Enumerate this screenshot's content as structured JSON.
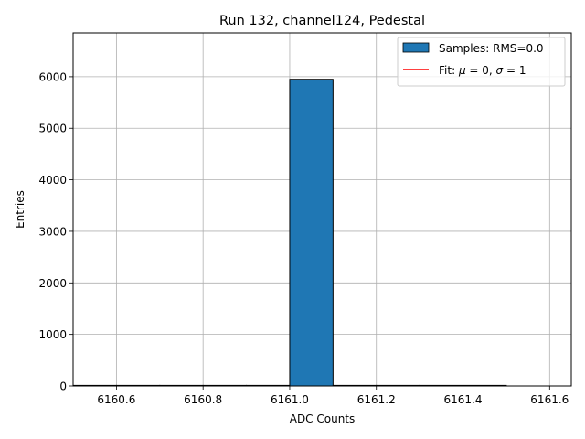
{
  "chart_data": {
    "type": "bar",
    "title": "Run 132, channel124, Pedestal",
    "xlabel": "ADC Counts",
    "ylabel": "Entries",
    "xlim": [
      6160.5,
      6161.65
    ],
    "ylim": [
      0,
      6850
    ],
    "xticks": [
      6160.6,
      6160.8,
      6161.0,
      6161.2,
      6161.4,
      6161.6
    ],
    "xtick_labels": [
      "6160.6",
      "6160.8",
      "6161.0",
      "6161.2",
      "6161.4",
      "6161.6"
    ],
    "yticks": [
      0,
      1000,
      2000,
      3000,
      4000,
      5000,
      6000
    ],
    "ytick_labels": [
      "0",
      "1000",
      "2000",
      "3000",
      "4000",
      "5000",
      "6000"
    ],
    "bins": [
      {
        "x0": 6160.5,
        "x1": 6160.6,
        "value": 0
      },
      {
        "x0": 6160.6,
        "x1": 6160.7,
        "value": 0
      },
      {
        "x0": 6160.7,
        "x1": 6160.8,
        "value": 0
      },
      {
        "x0": 6160.8,
        "x1": 6160.9,
        "value": 0
      },
      {
        "x0": 6160.9,
        "x1": 6161.0,
        "value": 0
      },
      {
        "x0": 6161.0,
        "x1": 6161.1,
        "value": 5950
      },
      {
        "x0": 6161.1,
        "x1": 6161.2,
        "value": 0
      },
      {
        "x0": 6161.2,
        "x1": 6161.3,
        "value": 0
      },
      {
        "x0": 6161.3,
        "x1": 6161.4,
        "value": 0
      },
      {
        "x0": 6161.4,
        "x1": 6161.5,
        "value": 0
      }
    ],
    "grid": true,
    "legend_position": "top-right",
    "legend": [
      {
        "kind": "patch",
        "label": "Samples: RMS=0.0",
        "color": "#1f77b4"
      },
      {
        "kind": "line",
        "label_prefix": "Fit: ",
        "label_mu": "μ",
        "label_mid": " = 0, ",
        "label_sigma": "σ",
        "label_suffix": " = 1",
        "color": "#ff0000"
      }
    ],
    "colors": {
      "bar": "#1f77b4",
      "fit": "#ff0000",
      "grid": "#b0b0b0"
    }
  }
}
